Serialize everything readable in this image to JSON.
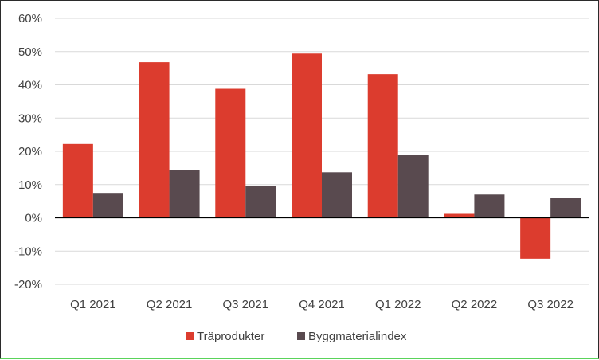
{
  "chart_data": {
    "type": "bar",
    "title": "",
    "xlabel": "",
    "ylabel": "",
    "categories": [
      "Q1 2021",
      "Q2 2021",
      "Q3 2021",
      "Q4 2021",
      "Q1 2022",
      "Q2 2022",
      "Q3 2022"
    ],
    "series": [
      {
        "name": "Träprodukter",
        "color": "#dc3c2e",
        "values": [
          22.2,
          46.8,
          38.8,
          49.4,
          43.2,
          1.2,
          -12.3
        ]
      },
      {
        "name": "Byggmaterialindex",
        "color": "#594a4f",
        "values": [
          7.5,
          14.4,
          9.6,
          13.7,
          18.8,
          7.0,
          5.9
        ]
      }
    ],
    "ylim": [
      -20,
      60
    ],
    "yticks": [
      -20,
      -10,
      0,
      10,
      20,
      30,
      40,
      50,
      60
    ],
    "ytick_labels": [
      "-20%",
      "-10%",
      "0%",
      "10%",
      "20%",
      "30%",
      "40%",
      "50%",
      "60%"
    ],
    "grid": true,
    "legend_position": "bottom"
  }
}
